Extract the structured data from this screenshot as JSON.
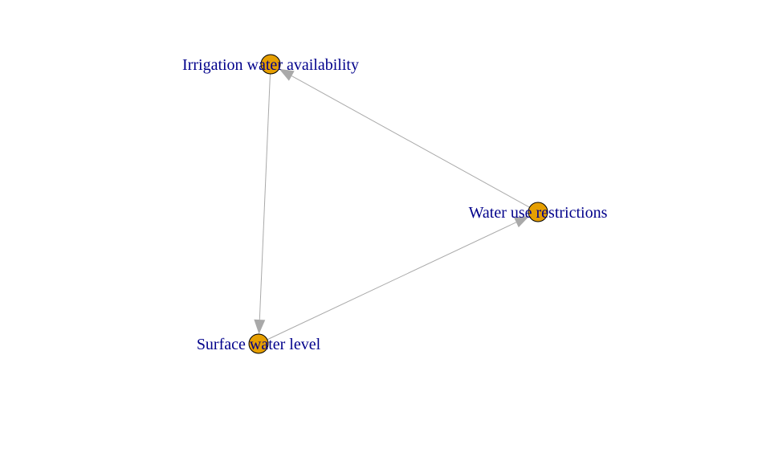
{
  "diagram": {
    "nodes": [
      {
        "id": "irrigation",
        "label": "Irrigation water availability"
      },
      {
        "id": "restrictions",
        "label": "Water use restrictions"
      },
      {
        "id": "surface",
        "label": "Surface water level"
      }
    ],
    "edges": [
      {
        "from": "restrictions",
        "to": "irrigation"
      },
      {
        "from": "irrigation",
        "to": "surface"
      },
      {
        "from": "surface",
        "to": "restrictions"
      }
    ],
    "colors": {
      "node_fill": "#E69F00",
      "node_stroke": "#000000",
      "edge": "#A9A9A9",
      "label": "#00008B"
    }
  }
}
